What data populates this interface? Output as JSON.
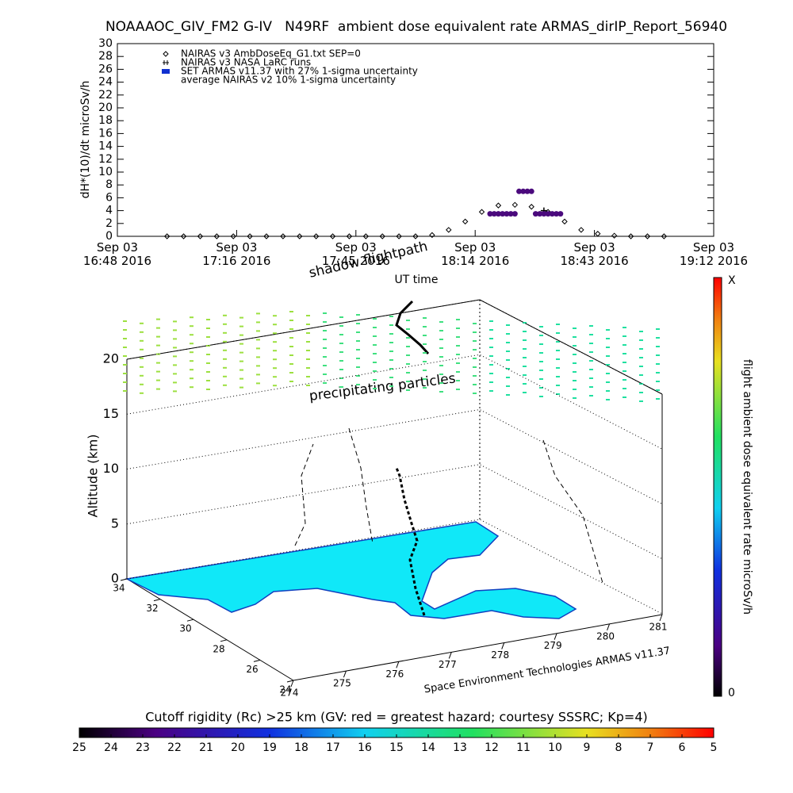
{
  "chart_data": [
    {
      "type": "line",
      "title": "NOAAAOC_GIV_FM2 G-IV   N49RF  ambient dose equivalent rate ARMAS_dirIP_Report_56940",
      "ylabel": "dH*(10)/dt microSv/h",
      "xlabel": "UT time",
      "xlim": [
        "2016-09-03T16:48:00",
        "2016-09-03T19:12:00"
      ],
      "xticks": [
        {
          "value": "2016-09-03T16:48:00",
          "label": "Sep 03\n16:48 2016"
        },
        {
          "value": "2016-09-03T17:16:48",
          "label": "Sep 03\n17:16 2016"
        },
        {
          "value": "2016-09-03T17:45:36",
          "label": "Sep 03\n17:45 2016"
        },
        {
          "value": "2016-09-03T18:14:24",
          "label": "Sep 03\n18:14 2016"
        },
        {
          "value": "2016-09-03T18:43:12",
          "label": "Sep 03\n18:43 2016"
        },
        {
          "value": "2016-09-03T19:12:00",
          "label": "Sep 03\n19:12 2016"
        }
      ],
      "ylim": [
        0,
        30
      ],
      "yticks": [
        0,
        2,
        4,
        6,
        8,
        10,
        12,
        14,
        16,
        18,
        20,
        22,
        24,
        26,
        28,
        30
      ],
      "series": [
        {
          "name": "NAIRAS v3 AmbDoseEq_G1.txt SEP=0",
          "color": "#000000",
          "marker": "diamond",
          "x": [
            "2016-09-03T17:00:00",
            "2016-09-03T17:04:00",
            "2016-09-03T17:08:00",
            "2016-09-03T17:12:00",
            "2016-09-03T17:16:00",
            "2016-09-03T17:20:00",
            "2016-09-03T17:24:00",
            "2016-09-03T17:28:00",
            "2016-09-03T17:32:00",
            "2016-09-03T17:36:00",
            "2016-09-03T17:40:00",
            "2016-09-03T17:44:00",
            "2016-09-03T17:48:00",
            "2016-09-03T17:52:00",
            "2016-09-03T17:56:00",
            "2016-09-03T18:00:00",
            "2016-09-03T18:04:00",
            "2016-09-03T18:08:00",
            "2016-09-03T18:12:00",
            "2016-09-03T18:16:00",
            "2016-09-03T18:20:00",
            "2016-09-03T18:24:00",
            "2016-09-03T18:28:00",
            "2016-09-03T18:32:00",
            "2016-09-03T18:36:00",
            "2016-09-03T18:40:00",
            "2016-09-03T18:44:00",
            "2016-09-03T18:48:00",
            "2016-09-03T18:52:00",
            "2016-09-03T18:56:00",
            "2016-09-03T19:00:00"
          ],
          "values": [
            0,
            0,
            0,
            0,
            0,
            0,
            0,
            0,
            0,
            0,
            0,
            0,
            0,
            0,
            0,
            0,
            0.2,
            1.0,
            2.3,
            3.8,
            4.8,
            4.9,
            4.6,
            3.8,
            2.3,
            1.0,
            0.4,
            0.1,
            0,
            0,
            0
          ]
        },
        {
          "name": "NAIRAS v3 NASA LaRC runs",
          "color": "#000000",
          "marker": "plus",
          "x": [
            "2016-09-03T18:31:00"
          ],
          "values": [
            4
          ]
        },
        {
          "name": "SET ARMAS v11.37 with 27% 1-sigma uncertainty",
          "color": "#4b0a7d",
          "line_color": "#000000",
          "marker": "circle",
          "x": [
            "2016-09-03T17:00:00",
            "2016-09-03T18:17:00",
            "2016-09-03T18:18:00",
            "2016-09-03T18:19:00",
            "2016-09-03T18:20:00",
            "2016-09-03T18:21:00",
            "2016-09-03T18:22:00",
            "2016-09-03T18:23:00",
            "2016-09-03T18:24:00",
            "2016-09-03T18:25:00",
            "2016-09-03T18:26:00",
            "2016-09-03T18:27:00",
            "2016-09-03T18:28:00",
            "2016-09-03T18:29:00",
            "2016-09-03T18:30:00",
            "2016-09-03T18:31:00",
            "2016-09-03T18:32:00",
            "2016-09-03T18:33:00",
            "2016-09-03T18:34:00",
            "2016-09-03T18:35:00",
            "2016-09-03T18:36:00",
            "2016-09-03T19:02:00"
          ],
          "values": [
            0,
            0,
            3.5,
            3.5,
            3.5,
            3.5,
            3.5,
            3.5,
            3.5,
            7,
            7,
            7,
            7,
            3.5,
            3.5,
            3.5,
            3.5,
            3.5,
            3.5,
            3.5,
            0,
            0
          ]
        },
        {
          "name": "average NAIRAS v2 10% 1-sigma uncertainty",
          "color": "#000000",
          "marker": "none",
          "x": [],
          "values": []
        }
      ]
    },
    {
      "type": "scatter3d",
      "zlabel": "Altitude (km)",
      "zlim": [
        0,
        20
      ],
      "zticks": [
        0,
        5,
        10,
        15,
        20
      ],
      "latlim": [
        34,
        24
      ],
      "latticks": [
        34,
        32,
        30,
        28,
        26,
        24
      ],
      "lonlim": [
        274,
        281
      ],
      "lonticks": [
        274,
        275,
        276,
        277,
        278,
        279,
        280,
        281
      ],
      "annotations": [
        "shadow flightpath",
        "precipitating particles"
      ],
      "credit": "Space Environment Technologies ARMAS v11.37"
    }
  ],
  "colorbars": {
    "right": {
      "label": "flight ambient dose equivalent rate microSv/h",
      "top_label": "X",
      "bottom_label": "0"
    },
    "bottom": {
      "title": "Cutoff rigidity (Rc) >25 km (GV: red = greatest hazard; courtesy SSSRC; Kp=4)",
      "lim": [
        25,
        5
      ],
      "ticks": [
        25,
        24,
        23,
        22,
        21,
        20,
        19,
        18,
        17,
        16,
        15,
        14,
        13,
        12,
        11,
        10,
        9,
        8,
        7,
        6,
        5
      ]
    }
  }
}
